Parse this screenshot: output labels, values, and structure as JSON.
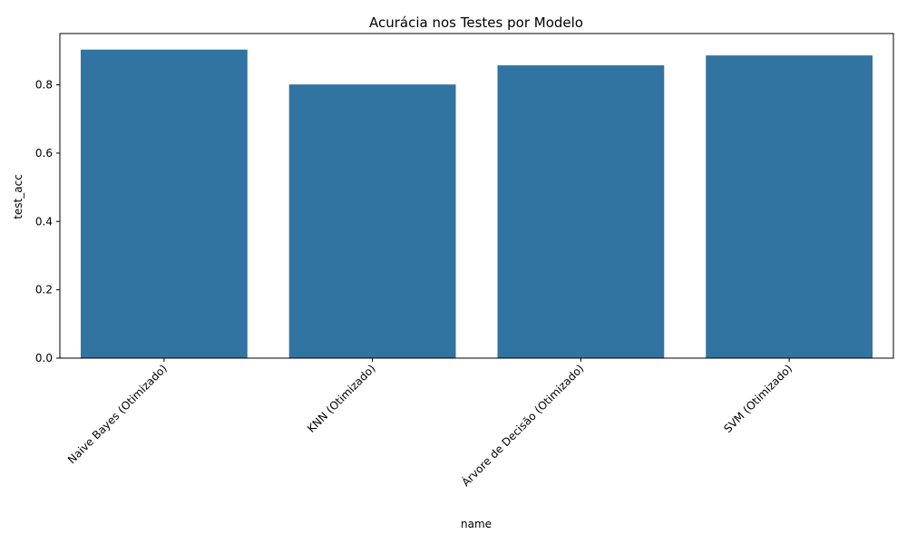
{
  "chart_data": {
    "type": "bar",
    "title": "Acurácia nos Testes por Modelo",
    "xlabel": "name",
    "ylabel": "test_acc",
    "categories": [
      "Naive Bayes (Otimizado)",
      "KNN (Otimizado)",
      "Árvore de Decisão (Otimizado)",
      "SVM (Otimizado)"
    ],
    "values": [
      0.903,
      0.801,
      0.857,
      0.886
    ],
    "ylim": [
      0,
      0.95
    ],
    "yticks": [
      "0.0",
      "0.2",
      "0.4",
      "0.6",
      "0.8"
    ],
    "grid": false,
    "bar_color": "#3274a1"
  }
}
